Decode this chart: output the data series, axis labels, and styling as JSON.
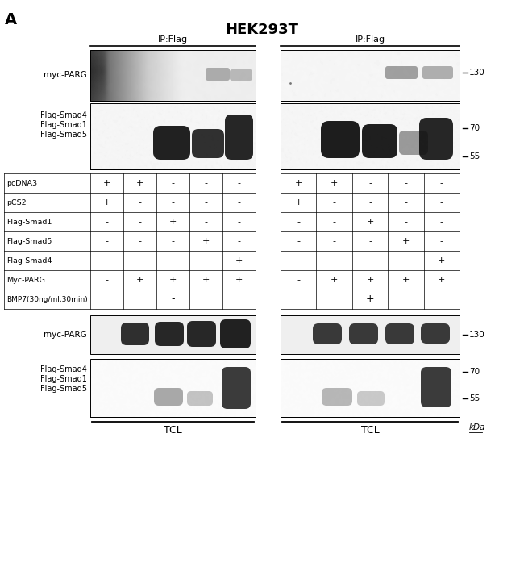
{
  "title": "HEK293T",
  "panel_label": "A",
  "bg_color": "#ffffff",
  "figure_width": 6.5,
  "figure_height": 6.98,
  "table_rows": [
    {
      "label": "pcDNA3",
      "left": [
        "+",
        "+",
        "-",
        "-",
        "-"
      ],
      "right": [
        "+",
        "+",
        "-",
        "-",
        "-"
      ]
    },
    {
      "label": "pCS2",
      "left": [
        "+",
        "-",
        "-",
        "-",
        "-"
      ],
      "right": [
        "+",
        "-",
        "-",
        "-",
        "-"
      ]
    },
    {
      "label": "Flag-Smad1",
      "left": [
        "-",
        "-",
        "+",
        "-",
        "-"
      ],
      "right": [
        "-",
        "-",
        "+",
        "-",
        "-"
      ]
    },
    {
      "label": "Flag-Smad5",
      "left": [
        "-",
        "-",
        "-",
        "+",
        "-"
      ],
      "right": [
        "-",
        "-",
        "-",
        "+",
        "-"
      ]
    },
    {
      "label": "Flag-Smad4",
      "left": [
        "-",
        "-",
        "-",
        "-",
        "+"
      ],
      "right": [
        "-",
        "-",
        "-",
        "-",
        "+"
      ]
    },
    {
      "label": "Myc-PARG",
      "left": [
        "-",
        "+",
        "+",
        "+",
        "+"
      ],
      "right": [
        "-",
        "+",
        "+",
        "+",
        "+"
      ]
    },
    {
      "label": "BMP7(30ng/ml,30min)",
      "left_span": "-",
      "right_span": "+"
    }
  ]
}
